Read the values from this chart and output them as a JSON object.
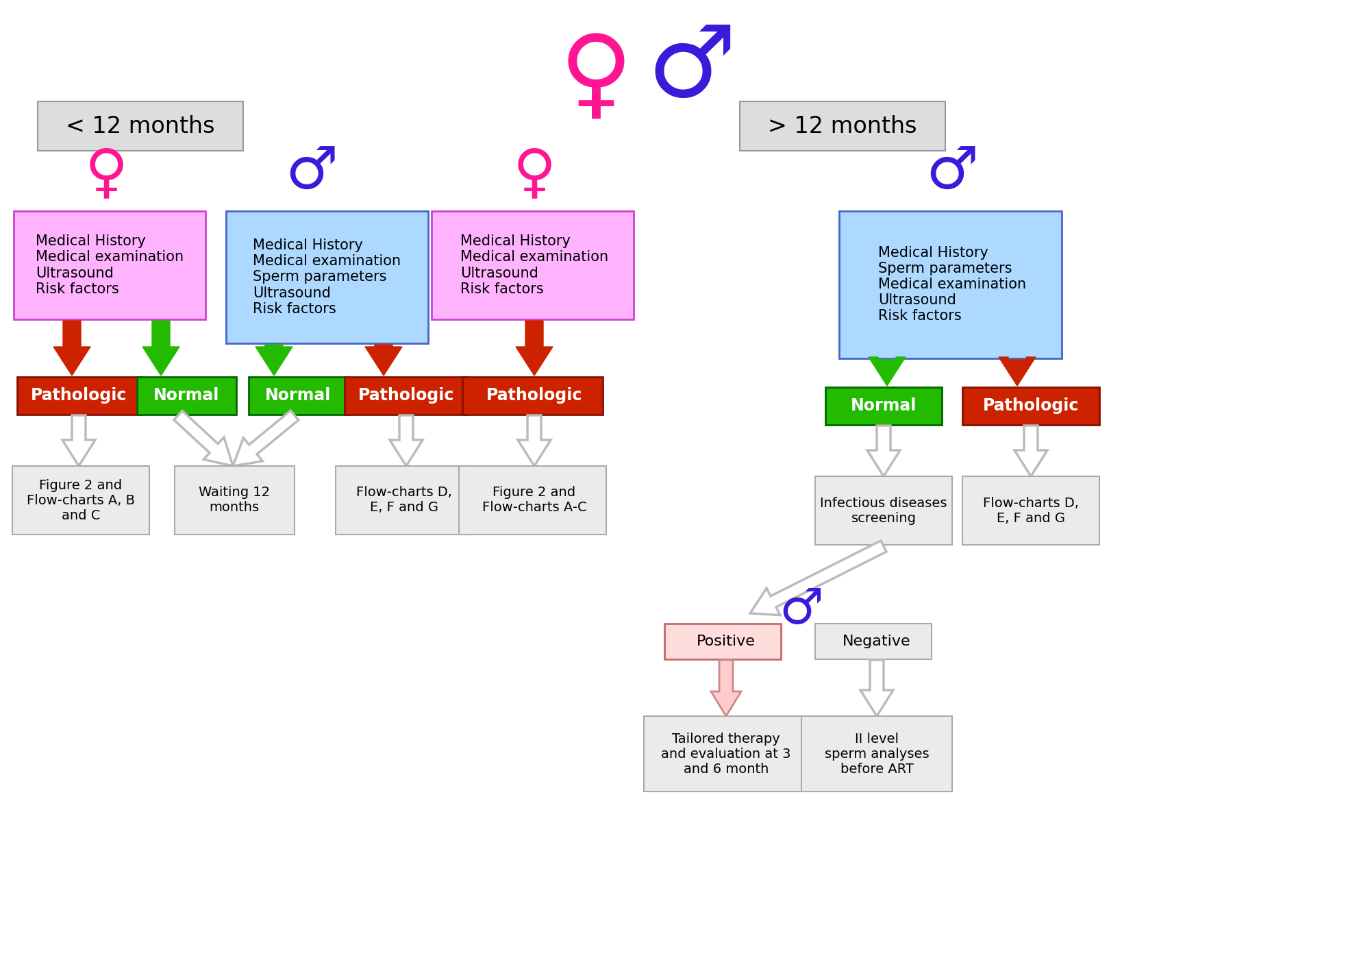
{
  "bg_color": "#ffffff",
  "female_color": "#FF1493",
  "male_color": "#3A1ADB",
  "pink_box_color": "#FFB3FF",
  "blue_box_color": "#ADD8FF",
  "red_box_color": "#CC2200",
  "green_box_color": "#22BB00",
  "gray_box_color": "#EBEBEB",
  "left_label": "< 12 months",
  "right_label": "> 12 months",
  "female_box_left": "Medical History\nMedical examination\nUltrasound\nRisk factors",
  "male_box_left": "Medical History\nMedical examination\nSperm parameters\nUltrasound\nRisk factors",
  "female_box_right": "Medical History\nMedical examination\nUltrasound\nRisk factors",
  "male_box_right": "Medical History\nSperm parameters\nMedical examination\nUltrasound\nRisk factors",
  "pathologic_label": "Pathologic",
  "normal_label": "Normal",
  "text_fig2_ABC": "Figure 2 and\nFlow-charts A, B\nand C",
  "text_waiting": "Waiting 12\nmonths",
  "text_flowDEFG": "Flow-charts D,\nE, F and G",
  "text_fig2_AC": "Figure 2 and\nFlow-charts A-C",
  "text_infectious": "Infectious diseases\nscreening",
  "text_flowDEFG2": "Flow-charts D,\nE, F and G",
  "text_positive": "Positive",
  "text_negative": "Negative",
  "text_tailored": "Tailored therapy\nand evaluation at 3\nand 6 month",
  "text_iilevel": "II level\nsperm analyses\nbefore ART"
}
